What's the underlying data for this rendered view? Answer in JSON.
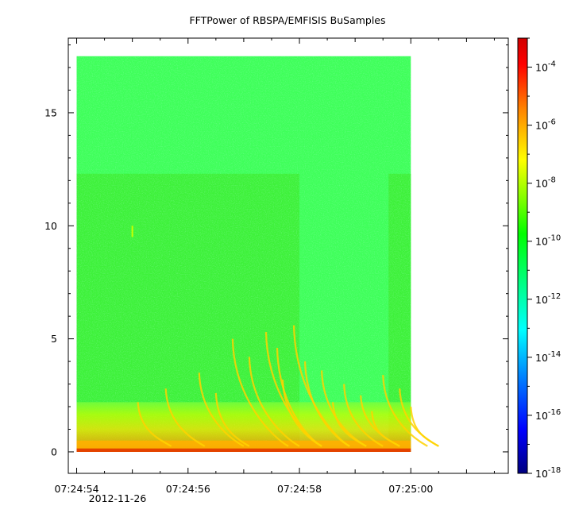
{
  "chart_data": {
    "type": "heatmap",
    "title": "FFTPower of RBSPA/EMFISIS  BuSamples",
    "xlabel": "",
    "ylabel": "",
    "x_ticks": [
      "07:24:54",
      "07:24:56",
      "07:24:58",
      "07:25:00"
    ],
    "x_tick_values": [
      54,
      56,
      58,
      60
    ],
    "x_date": "2012-11-26",
    "xlim": [
      53.85,
      61.75
    ],
    "x_data_range": [
      54.0,
      60.0
    ],
    "y_ticks": [
      "0",
      "5",
      "10",
      "15"
    ],
    "y_tick_values": [
      0,
      5,
      10,
      15
    ],
    "ylim": [
      -0.95,
      18.3
    ],
    "y_data_range": [
      0,
      17.5
    ],
    "colorbar": {
      "scale": "log",
      "range": [
        1e-18,
        0.001
      ],
      "ticks": [
        {
          "base": "10",
          "exp": "-4",
          "value": -4
        },
        {
          "base": "10",
          "exp": "-6",
          "value": -6
        },
        {
          "base": "10",
          "exp": "-8",
          "value": -8
        },
        {
          "base": "10",
          "exp": "-10",
          "value": -10
        },
        {
          "base": "10",
          "exp": "-12",
          "value": -12
        },
        {
          "base": "10",
          "exp": "-14",
          "value": -14
        },
        {
          "base": "10",
          "exp": "-16",
          "value": -16
        },
        {
          "base": "10",
          "exp": "-18",
          "value": -18
        }
      ],
      "colormap": [
        "#00007f",
        "#0000ff",
        "#0080ff",
        "#00ffff",
        "#00ff80",
        "#00ff00",
        "#80ff00",
        "#ffff00",
        "#ff8000",
        "#ff0000",
        "#d00000"
      ]
    },
    "grid": false,
    "legend": "none"
  }
}
